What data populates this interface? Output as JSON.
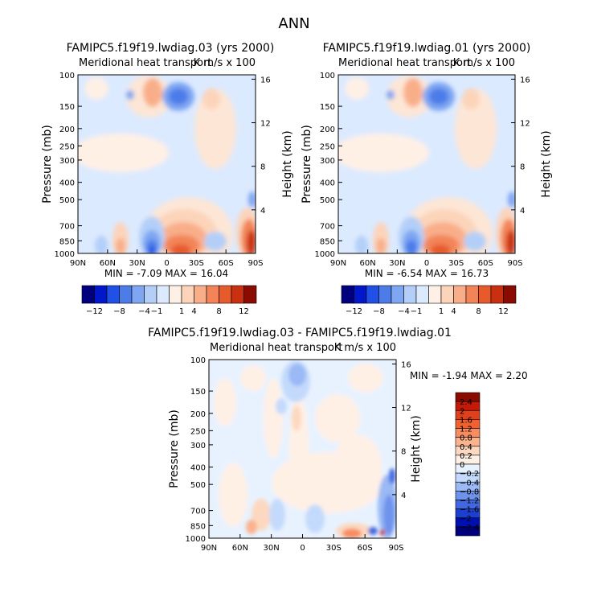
{
  "figure": {
    "title": "ANN",
    "panels": [
      {
        "title": "FAMIPC5.f19f19.lwdiag.03 (yrs 2000)",
        "subtitle": "Meridional heat transport",
        "units": "K m/s x 100",
        "stats": "MIN =  -7.09   MAX =  16.04"
      },
      {
        "title": "FAMIPC5.f19f19.lwdiag.01 (yrs 2000)",
        "subtitle": "Meridional heat transport",
        "units": "K m/s x 100",
        "stats": "MIN =  -6.54   MAX =  16.73"
      },
      {
        "title": "FAMIPC5.f19f19.lwdiag.03 - FAMIPC5.f19f19.lwdiag.01",
        "subtitle": "Meridional heat transport",
        "units": "K m/s x 100",
        "stats": "MIN =  -1.94   MAX =   2.20"
      }
    ]
  },
  "chart_data": [
    {
      "type": "heatmap",
      "title": "FAMIPC5.f19f19.lwdiag.03 (yrs 2000)",
      "subtitle": "Meridional heat transport",
      "units": "K m/s x 100",
      "xlabel": "",
      "ylabel": "Pressure (mb)",
      "y2label": "Height (km)",
      "xticks": [
        "90N",
        "60N",
        "30N",
        "0",
        "30S",
        "60S",
        "90S"
      ],
      "xlim": [
        90,
        -90
      ],
      "yticks": [
        100,
        150,
        200,
        250,
        300,
        400,
        500,
        700,
        850,
        1000
      ],
      "ylim": [
        100,
        1000
      ],
      "y2ticks": [
        4,
        8,
        12,
        16
      ],
      "min": -7.09,
      "max": 16.04,
      "colorbar_levels": [
        -12,
        -8,
        -4,
        -1,
        1,
        4,
        8,
        12
      ],
      "colorbar_labels": [
        "-12",
        "-8",
        "-4",
        "-1",
        "1",
        "4",
        "8",
        "12"
      ],
      "colorbar_colors": [
        "#00007f",
        "#0018c9",
        "#2050e6",
        "#4b7ce8",
        "#7ea6f2",
        "#b3cff8",
        "#dceaff",
        "#fff0e6",
        "#fcd4ba",
        "#f9ae8a",
        "#f28458",
        "#e65a2c",
        "#c9300f",
        "#8a0b00"
      ],
      "features": [
        {
          "lat": 37,
          "p": 200,
          "sign": "positive",
          "value": 2
        },
        {
          "lat": 10,
          "p": 200,
          "sign": "negative",
          "value": -4
        },
        {
          "lat": -25,
          "p": 220,
          "sign": "positive",
          "value": 2
        },
        {
          "lat": -5,
          "p": 960,
          "sign": "positive",
          "value": 12
        },
        {
          "lat": 17,
          "p": 960,
          "sign": "negative",
          "value": -7
        },
        {
          "lat": 45,
          "p": 960,
          "sign": "positive",
          "value": 4
        },
        {
          "lat": -84,
          "p": 960,
          "sign": "positive",
          "value": 16
        }
      ]
    },
    {
      "type": "heatmap",
      "title": "FAMIPC5.f19f19.lwdiag.01 (yrs 2000)",
      "subtitle": "Meridional heat transport",
      "units": "K m/s x 100",
      "xlabel": "",
      "ylabel": "Pressure (mb)",
      "y2label": "Height (km)",
      "xticks": [
        "90N",
        "60N",
        "30N",
        "0",
        "30S",
        "60S",
        "90S"
      ],
      "xlim": [
        90,
        -90
      ],
      "yticks": [
        100,
        150,
        200,
        250,
        300,
        400,
        500,
        700,
        850,
        1000
      ],
      "ylim": [
        100,
        1000
      ],
      "y2ticks": [
        4,
        8,
        12,
        16
      ],
      "min": -6.54,
      "max": 16.73,
      "colorbar_levels": [
        -12,
        -8,
        -4,
        -1,
        1,
        4,
        8,
        12
      ],
      "colorbar_labels": [
        "-12",
        "-8",
        "-4",
        "-1",
        "1",
        "4",
        "8",
        "12"
      ],
      "colorbar_colors": [
        "#00007f",
        "#0018c9",
        "#2050e6",
        "#4b7ce8",
        "#7ea6f2",
        "#b3cff8",
        "#dceaff",
        "#fff0e6",
        "#fcd4ba",
        "#f9ae8a",
        "#f28458",
        "#e65a2c",
        "#c9300f",
        "#8a0b00"
      ],
      "features": [
        {
          "lat": 37,
          "p": 200,
          "sign": "positive",
          "value": 2
        },
        {
          "lat": 10,
          "p": 200,
          "sign": "negative",
          "value": -4
        },
        {
          "lat": -25,
          "p": 220,
          "sign": "positive",
          "value": 2
        },
        {
          "lat": -5,
          "p": 960,
          "sign": "positive",
          "value": 12
        },
        {
          "lat": 17,
          "p": 960,
          "sign": "negative",
          "value": -6
        },
        {
          "lat": 45,
          "p": 960,
          "sign": "positive",
          "value": 4
        },
        {
          "lat": -84,
          "p": 960,
          "sign": "positive",
          "value": 16
        }
      ]
    },
    {
      "type": "heatmap",
      "title": "FAMIPC5.f19f19.lwdiag.03 - FAMIPC5.f19f19.lwdiag.01",
      "subtitle": "Meridional heat transport",
      "units": "K m/s x 100",
      "xlabel": "",
      "ylabel": "Pressure (mb)",
      "y2label": "Height (km)",
      "xticks": [
        "90N",
        "60N",
        "30N",
        "0",
        "30S",
        "60S",
        "90S"
      ],
      "xlim": [
        90,
        -90
      ],
      "yticks": [
        100,
        150,
        200,
        250,
        300,
        400,
        500,
        700,
        850,
        1000
      ],
      "ylim": [
        100,
        1000
      ],
      "y2ticks": [
        4,
        8,
        12,
        16
      ],
      "min": -1.94,
      "max": 2.2,
      "colorbar_levels": [
        -2.4,
        -2,
        -1.6,
        -1.2,
        -0.8,
        -0.4,
        -0.2,
        0,
        0.2,
        0.4,
        0.8,
        1.2,
        1.6,
        2,
        2.4
      ],
      "colorbar_labels": [
        "2.4",
        "2",
        "1.6",
        "1.2",
        "0.8",
        "0.4",
        "0.2",
        "0",
        "-0.2",
        "-0.4",
        "-0.8",
        "-1.2",
        "-1.6",
        "-2",
        "-2.4"
      ],
      "colorbar_colors": [
        "#8a0b00",
        "#c41a08",
        "#e0401c",
        "#f06030",
        "#f88c60",
        "#fbb48e",
        "#fdd8c0",
        "#fff0e6",
        "#e8f2ff",
        "#c4dafc",
        "#9ab9f5",
        "#6e93ec",
        "#4168e0",
        "#1b3fd0",
        "#0010b0",
        "#00007f"
      ],
      "features": [
        {
          "lat": 5,
          "p": 180,
          "sign": "negative",
          "value": -1.2
        },
        {
          "lat": 5,
          "p": 420,
          "sign": "positive",
          "value": 0.4
        },
        {
          "lat": -60,
          "p": 980,
          "sign": "positive",
          "value": 2.2
        },
        {
          "lat": -80,
          "p": 900,
          "sign": "negative",
          "value": -1.9
        },
        {
          "lat": 40,
          "p": 960,
          "sign": "positive",
          "value": 0.8
        }
      ]
    }
  ]
}
